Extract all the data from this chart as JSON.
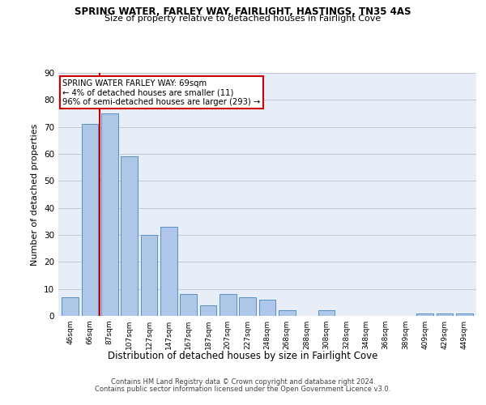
{
  "title1": "SPRING WATER, FARLEY WAY, FAIRLIGHT, HASTINGS, TN35 4AS",
  "title2": "Size of property relative to detached houses in Fairlight Cove",
  "xlabel": "Distribution of detached houses by size in Fairlight Cove",
  "ylabel": "Number of detached properties",
  "categories": [
    "46sqm",
    "66sqm",
    "87sqm",
    "107sqm",
    "127sqm",
    "147sqm",
    "167sqm",
    "187sqm",
    "207sqm",
    "227sqm",
    "248sqm",
    "268sqm",
    "288sqm",
    "308sqm",
    "328sqm",
    "348sqm",
    "368sqm",
    "389sqm",
    "409sqm",
    "429sqm",
    "449sqm"
  ],
  "values": [
    7,
    71,
    75,
    59,
    30,
    33,
    8,
    4,
    8,
    7,
    6,
    2,
    0,
    2,
    0,
    0,
    0,
    0,
    1,
    1,
    1
  ],
  "bar_color": "#aec6e8",
  "bar_edge_color": "#5a8fc2",
  "vline_x": 1.5,
  "vline_color": "#cc0000",
  "annotation_title": "SPRING WATER FARLEY WAY: 69sqm",
  "annotation_line2": "← 4% of detached houses are smaller (11)",
  "annotation_line3": "96% of semi-detached houses are larger (293) →",
  "annotation_box_color": "#cc0000",
  "ylim": [
    0,
    90
  ],
  "yticks": [
    0,
    10,
    20,
    30,
    40,
    50,
    60,
    70,
    80,
    90
  ],
  "grid_color": "#c0c8d8",
  "bg_color": "#e8eef8",
  "footer1": "Contains HM Land Registry data © Crown copyright and database right 2024.",
  "footer2": "Contains public sector information licensed under the Open Government Licence v3.0."
}
